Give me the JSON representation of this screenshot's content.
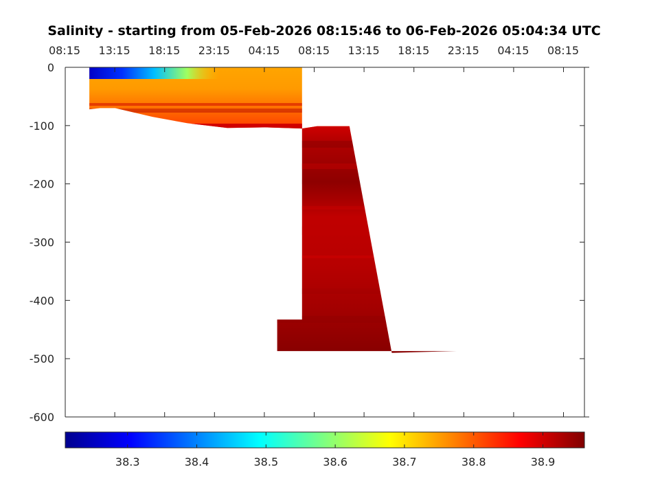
{
  "chart_data": {
    "type": "heatmap",
    "title": "Salinity - starting from 05-Feb-2026 08:15:46 to 06-Feb-2026 05:04:34 UTC",
    "xlabel": "",
    "ylabel": "",
    "x_tick_labels": [
      "08:15",
      "13:15",
      "18:15",
      "23:15",
      "04:15",
      "08:15",
      "13:15",
      "18:15",
      "23:15",
      "04:15",
      "08:15"
    ],
    "y_ticks": [
      0,
      -100,
      -200,
      -300,
      -400,
      -500,
      -600
    ],
    "ylim": [
      -600,
      0
    ],
    "x_axis_position": "top",
    "colorbar": {
      "position": "bottom",
      "colormap": "jet",
      "range": [
        38.21,
        38.96
      ],
      "ticks": [
        38.3,
        38.4,
        38.5,
        38.6,
        38.7,
        38.8,
        38.9
      ]
    },
    "grid": false,
    "profile_depth_outline": [
      {
        "time": "10:40",
        "depth": -72
      },
      {
        "time": "11:45",
        "depth": -70
      },
      {
        "time": "13:15",
        "depth": -70
      },
      {
        "time": "17:00",
        "depth": -85
      },
      {
        "time": "20:30",
        "depth": -96
      },
      {
        "time": "00:30",
        "depth": -104
      },
      {
        "time": "04:15",
        "depth": -103
      },
      {
        "time": "08:00",
        "depth": -105
      },
      {
        "time": "09:30",
        "depth": -101
      },
      {
        "time": "12:45",
        "depth": -101
      },
      {
        "time": "17:00",
        "depth": -490
      },
      {
        "time": "23:30",
        "depth": -487
      },
      {
        "time": "05:30",
        "depth": -487
      },
      {
        "time": "05:30",
        "depth": -433
      },
      {
        "time": "08:00",
        "depth": -433
      }
    ],
    "salinity_layers": [
      {
        "depth_range": [
          0,
          -20
        ],
        "salinity": 38.72,
        "note": "surface layer, freshest water 38.25 at start"
      },
      {
        "depth_range": [
          -20,
          -60
        ],
        "salinity": 38.76
      },
      {
        "depth_range": [
          -60,
          -100
        ],
        "salinity": 38.82
      },
      {
        "depth_range": [
          -100,
          -200
        ],
        "salinity": 38.91
      },
      {
        "depth_range": [
          -200,
          -300
        ],
        "salinity": 38.9
      },
      {
        "depth_range": [
          -300,
          -400
        ],
        "salinity": 38.87
      },
      {
        "depth_range": [
          -400,
          -490
        ],
        "salinity": 38.9
      }
    ]
  }
}
